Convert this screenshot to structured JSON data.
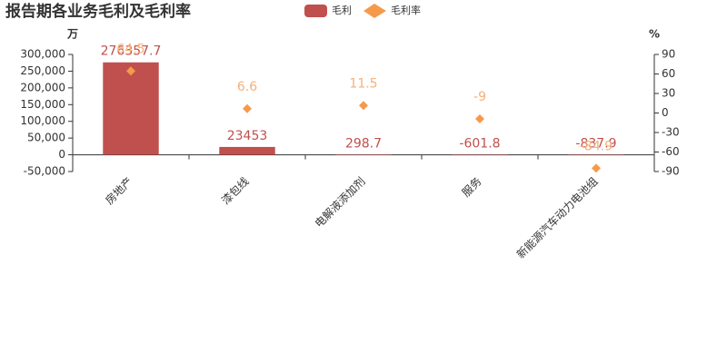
{
  "chart_data": {
    "type": "bar",
    "title": "报告期各业务毛利及毛利率",
    "y_unit": "万",
    "y2_unit": "%",
    "categories": [
      "房地产",
      "漆包线",
      "电解液添加剂",
      "服务",
      "新能源汽车动力电池组"
    ],
    "series": [
      {
        "name": "毛利",
        "type": "bar",
        "color": "#c0504d",
        "values": [
          276357.7,
          23453,
          298.7,
          -601.8,
          -837.9
        ]
      },
      {
        "name": "毛利率",
        "type": "scatter",
        "marker": "diamond",
        "axis": "y2",
        "color": "#f59a4a",
        "label_color": "#f5b07a",
        "values": [
          64.5,
          6.6,
          11.5,
          -9,
          -84.9
        ]
      }
    ],
    "ylim": [
      -50000,
      300000
    ],
    "yticks": [
      {
        "value": -50000,
        "label": "-50,000"
      },
      0,
      {
        "value": 50000,
        "label": "50,000"
      },
      {
        "value": 100000,
        "label": "100,000"
      },
      {
        "value": 150000,
        "label": "150,000"
      },
      {
        "value": 200000,
        "label": "200,000"
      },
      {
        "value": 250000,
        "label": "250,000"
      },
      {
        "value": 300000,
        "label": "300,000"
      }
    ],
    "y2lim": [
      -90,
      90
    ],
    "y2ticks": [
      -90,
      -60,
      -30,
      0,
      30,
      60,
      90
    ],
    "legend": "top"
  }
}
